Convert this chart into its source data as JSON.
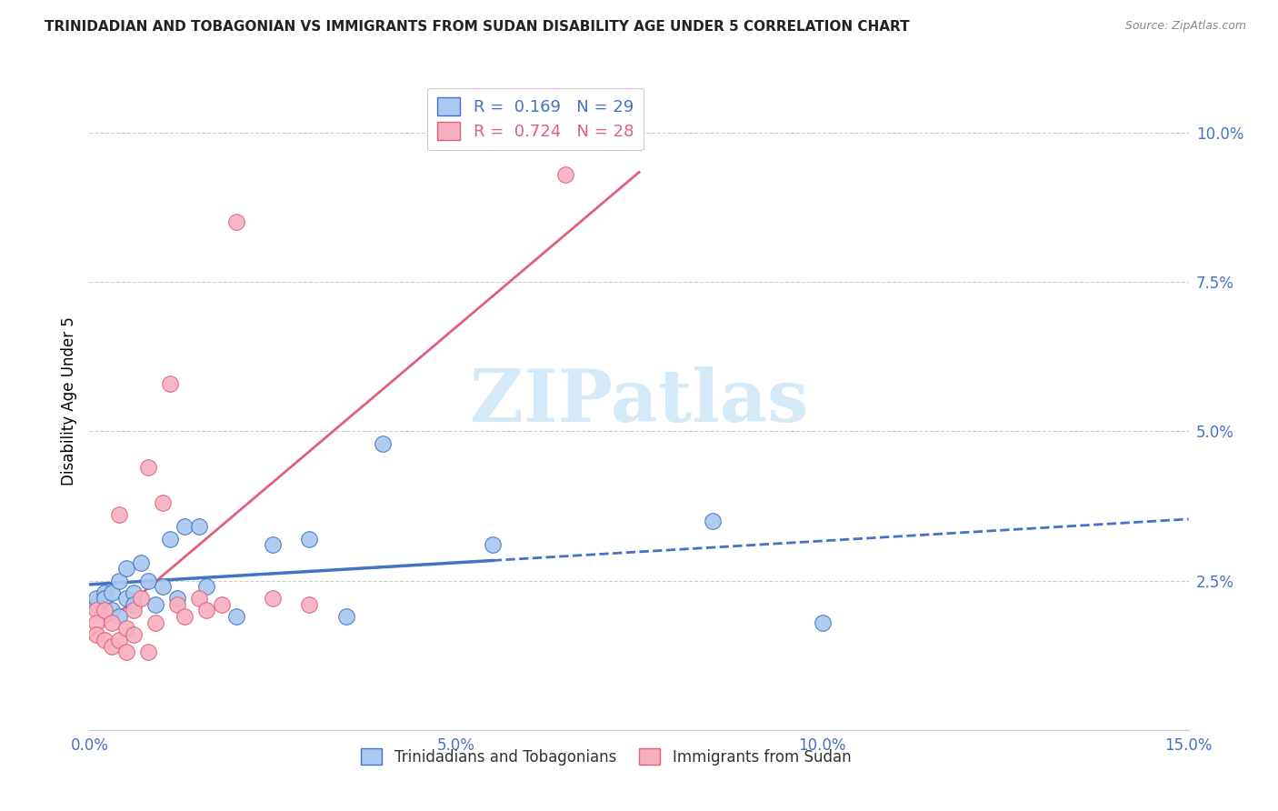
{
  "title": "TRINIDADIAN AND TOBAGONIAN VS IMMIGRANTS FROM SUDAN DISABILITY AGE UNDER 5 CORRELATION CHART",
  "source": "Source: ZipAtlas.com",
  "ylabel": "Disability Age Under 5",
  "xlim": [
    0.0,
    0.15
  ],
  "ylim": [
    0.0,
    0.11
  ],
  "x_ticks": [
    0.0,
    0.05,
    0.1,
    0.15
  ],
  "x_tick_labels": [
    "0.0%",
    "5.0%",
    "10.0%",
    "15.0%"
  ],
  "y_ticks": [
    0.0,
    0.025,
    0.05,
    0.075,
    0.1
  ],
  "y_tick_labels": [
    "",
    "2.5%",
    "5.0%",
    "7.5%",
    "10.0%"
  ],
  "blue_R": 0.169,
  "blue_N": 29,
  "pink_R": 0.724,
  "pink_N": 28,
  "blue_color": "#a8c8f0",
  "pink_color": "#f8b0c0",
  "blue_line_color": "#4472c4",
  "pink_line_color": "#e0607a",
  "watermark_text": "ZIPatlas",
  "watermark_color": "#d5eaf8",
  "legend_label_blue": "Trinidadians and Tobagonians",
  "legend_label_pink": "Immigrants from Sudan",
  "blue_x": [
    0.001,
    0.001,
    0.002,
    0.002,
    0.003,
    0.003,
    0.004,
    0.004,
    0.005,
    0.005,
    0.006,
    0.006,
    0.007,
    0.008,
    0.009,
    0.01,
    0.011,
    0.012,
    0.013,
    0.015,
    0.016,
    0.02,
    0.025,
    0.03,
    0.035,
    0.04,
    0.055,
    0.085,
    0.1
  ],
  "blue_y": [
    0.021,
    0.022,
    0.023,
    0.022,
    0.023,
    0.02,
    0.025,
    0.019,
    0.027,
    0.022,
    0.023,
    0.021,
    0.028,
    0.025,
    0.021,
    0.024,
    0.032,
    0.022,
    0.034,
    0.034,
    0.024,
    0.019,
    0.031,
    0.032,
    0.019,
    0.048,
    0.031,
    0.035,
    0.018
  ],
  "pink_x": [
    0.001,
    0.001,
    0.001,
    0.002,
    0.002,
    0.003,
    0.003,
    0.004,
    0.004,
    0.005,
    0.005,
    0.006,
    0.006,
    0.007,
    0.008,
    0.008,
    0.009,
    0.01,
    0.011,
    0.012,
    0.013,
    0.015,
    0.016,
    0.018,
    0.02,
    0.025,
    0.03,
    0.065
  ],
  "pink_y": [
    0.02,
    0.018,
    0.016,
    0.02,
    0.015,
    0.018,
    0.014,
    0.036,
    0.015,
    0.017,
    0.013,
    0.02,
    0.016,
    0.022,
    0.044,
    0.013,
    0.018,
    0.038,
    0.058,
    0.021,
    0.019,
    0.022,
    0.02,
    0.021,
    0.085,
    0.022,
    0.021,
    0.093
  ],
  "blue_solid_xlim": [
    0.0,
    0.055
  ],
  "blue_dash_xlim": [
    0.055,
    0.15
  ],
  "pink_line_xlim": [
    0.0,
    0.075
  ]
}
